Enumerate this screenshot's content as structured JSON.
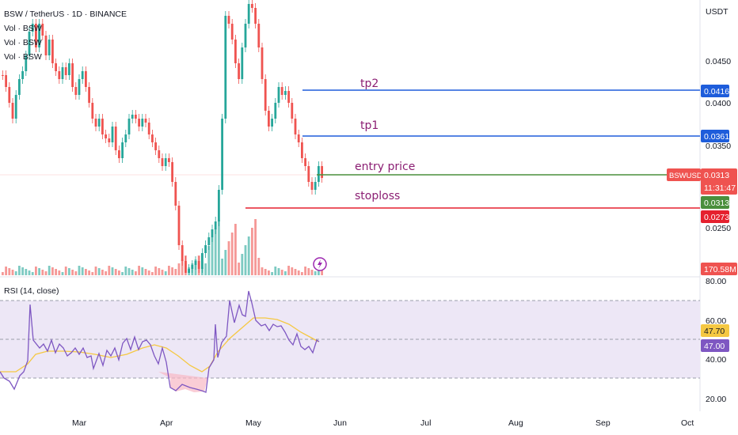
{
  "header": {
    "symbol_line": "BSW / TetherUS · 1D · BINANCE",
    "vol_lines": [
      "Vol · BSW",
      "Vol · BSW",
      "Vol · BSW"
    ],
    "currency": "USDT"
  },
  "price_axis": {
    "ticks": [
      "0.0450",
      "0.0400",
      "0.0350",
      "0.0250"
    ]
  },
  "rsi": {
    "label": "RSI (14, close)",
    "ticks": [
      "80.00",
      "60.00",
      "40.00",
      "20.00"
    ],
    "value_tag": "47.70",
    "value_tag2": "47.00",
    "ma_color": "#f5c842",
    "line_color": "#7e57c2"
  },
  "time_axis": {
    "labels": [
      "Mar",
      "Apr",
      "May",
      "Jun",
      "Jul",
      "Aug",
      "Sep",
      "Oct"
    ]
  },
  "annotations": {
    "tp2": "tp2",
    "tp1": "tp1",
    "entry": "entry price",
    "stoploss": "stoploss"
  },
  "price_tags": {
    "tp2": "0.0416",
    "tp1": "0.0361",
    "symbol": "BSWUSDT",
    "last_price": "0.0313",
    "countdown": "11:31:47",
    "entry": "0.0313",
    "stoploss": "0.0273",
    "volume": "170.58M"
  },
  "colors": {
    "up": "#26a69a",
    "down": "#ef5350",
    "tp_line": "#1e5ddb",
    "entry_line": "#4a8f3c",
    "stop_line": "#e5202e",
    "annotation_text": "#8b1e73",
    "rsi_band": "#ede7f6"
  }
}
